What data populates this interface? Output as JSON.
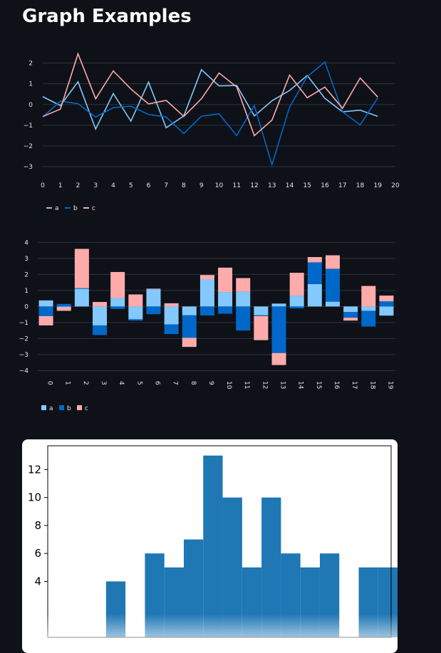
{
  "page": {
    "title": "Graph Examples"
  },
  "chart_data": [
    {
      "type": "line",
      "x": [
        0,
        1,
        2,
        3,
        4,
        5,
        6,
        7,
        8,
        9,
        10,
        11,
        12,
        13,
        14,
        15,
        16,
        17,
        18,
        19
      ],
      "x_ticks": [
        0,
        1,
        2,
        3,
        4,
        5,
        6,
        7,
        8,
        9,
        10,
        11,
        12,
        13,
        14,
        15,
        16,
        17,
        18,
        19,
        20
      ],
      "xlim": [
        0,
        20
      ],
      "ylim": [
        -3.2,
        2.5
      ],
      "y_ticks": [
        2,
        1,
        0,
        -1,
        -2,
        -3
      ],
      "grid": true,
      "legend": "bottom-left",
      "series": [
        {
          "name": "a",
          "color": "#83c9ff",
          "values": [
            0.38,
            -0.05,
            1.1,
            -1.18,
            0.53,
            -0.8,
            1.08,
            -1.12,
            -0.55,
            1.68,
            0.9,
            0.92,
            -0.55,
            0.18,
            0.68,
            1.4,
            0.3,
            -0.35,
            -0.27,
            -0.57
          ]
        },
        {
          "name": "b",
          "color": "#0068c9",
          "values": [
            -0.6,
            0.16,
            0.04,
            -0.6,
            -0.15,
            -0.08,
            -0.48,
            -0.6,
            -1.4,
            -0.56,
            -0.45,
            -1.5,
            -0.05,
            -2.9,
            -0.12,
            1.35,
            2.05,
            -0.35,
            -0.98,
            0.32
          ]
        },
        {
          "name": "c",
          "color": "#ffabab",
          "values": [
            -0.58,
            -0.22,
            2.45,
            0.28,
            1.62,
            0.75,
            0.03,
            0.2,
            -0.57,
            0.28,
            1.52,
            0.85,
            -1.5,
            -0.75,
            1.42,
            0.33,
            0.84,
            -0.18,
            1.28,
            0.36
          ]
        }
      ]
    },
    {
      "type": "bar",
      "stacked": true,
      "categories": [
        "0",
        "1",
        "2",
        "3",
        "4",
        "5",
        "6",
        "7",
        "8",
        "9",
        "10",
        "11",
        "12",
        "13",
        "14",
        "15",
        "16",
        "17",
        "18",
        "19"
      ],
      "ylim": [
        -4.2,
        4.1
      ],
      "y_ticks": [
        4,
        3,
        2,
        1,
        0,
        -1,
        -2,
        -3,
        -4
      ],
      "grid": true,
      "legend": "bottom-left",
      "series": [
        {
          "name": "a",
          "color": "#83c9ff",
          "values": [
            0.38,
            -0.05,
            1.1,
            -1.18,
            0.53,
            -0.8,
            1.08,
            -1.12,
            -0.55,
            1.68,
            0.9,
            0.92,
            -0.55,
            0.18,
            0.68,
            1.4,
            0.3,
            -0.35,
            -0.27,
            -0.57
          ]
        },
        {
          "name": "b",
          "color": "#0068c9",
          "values": [
            -0.6,
            0.16,
            0.04,
            -0.6,
            -0.15,
            -0.08,
            -0.48,
            -0.6,
            -1.4,
            -0.56,
            -0.45,
            -1.5,
            -0.05,
            -2.9,
            -0.12,
            1.35,
            2.05,
            -0.35,
            -0.98,
            0.32
          ]
        },
        {
          "name": "c",
          "color": "#ffabab",
          "values": [
            -0.58,
            -0.22,
            2.45,
            0.28,
            1.62,
            0.75,
            0.03,
            0.2,
            -0.57,
            0.28,
            1.52,
            0.85,
            -1.5,
            -0.75,
            1.42,
            0.33,
            0.84,
            -0.18,
            1.28,
            0.36
          ]
        }
      ]
    },
    {
      "type": "bar",
      "subtype": "histogram",
      "color": "#1f77b4",
      "xlim": [
        -2.65,
        2.65
      ],
      "ylim": [
        0,
        13.7
      ],
      "y_ticks": [
        4,
        6,
        8,
        10,
        12
      ],
      "bins": [
        {
          "start": -2.65,
          "end": -2.35,
          "count": 0
        },
        {
          "start": -2.35,
          "end": -2.05,
          "count": 0
        },
        {
          "start": -2.05,
          "end": -1.75,
          "count": 0
        },
        {
          "start": -1.75,
          "end": -1.45,
          "count": 4
        },
        {
          "start": -1.45,
          "end": -1.15,
          "count": 0
        },
        {
          "start": -1.15,
          "end": -0.85,
          "count": 6
        },
        {
          "start": -0.85,
          "end": -0.55,
          "count": 5
        },
        {
          "start": -0.55,
          "end": -0.25,
          "count": 7
        },
        {
          "start": -0.25,
          "end": 0.05,
          "count": 13
        },
        {
          "start": 0.05,
          "end": 0.35,
          "count": 10
        },
        {
          "start": 0.35,
          "end": 0.65,
          "count": 5
        },
        {
          "start": 0.65,
          "end": 0.95,
          "count": 10
        },
        {
          "start": 0.95,
          "end": 1.25,
          "count": 6
        },
        {
          "start": 1.25,
          "end": 1.55,
          "count": 5
        },
        {
          "start": 1.55,
          "end": 1.85,
          "count": 6
        },
        {
          "start": 1.85,
          "end": 2.15,
          "count": 0
        },
        {
          "start": 2.15,
          "end": 2.45,
          "count": 5
        },
        {
          "start": 2.45,
          "end": 2.75,
          "count": 5
        }
      ]
    }
  ]
}
